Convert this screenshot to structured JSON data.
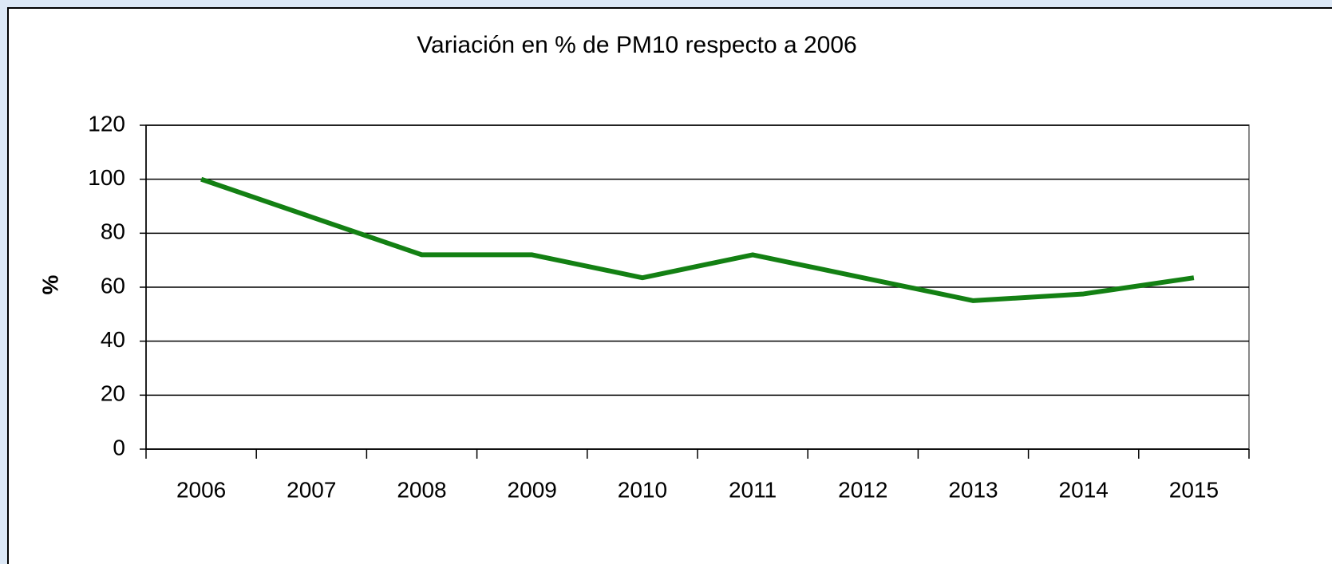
{
  "chart_data": {
    "type": "line",
    "title": "Variación en % de PM10 respecto a 2006",
    "y_label": "%",
    "categories": [
      "2006",
      "2007",
      "2008",
      "2009",
      "2010",
      "2011",
      "2012",
      "2013",
      "2014",
      "2015"
    ],
    "series": [
      {
        "name": "PM10",
        "color": "#138013",
        "values": [
          100,
          86,
          72,
          72,
          63.5,
          72,
          63.5,
          55,
          57.5,
          63.5
        ]
      }
    ],
    "ylim": [
      0,
      120
    ],
    "yticks": [
      0,
      20,
      40,
      60,
      80,
      100,
      120
    ],
    "grid": true,
    "legend": false
  }
}
